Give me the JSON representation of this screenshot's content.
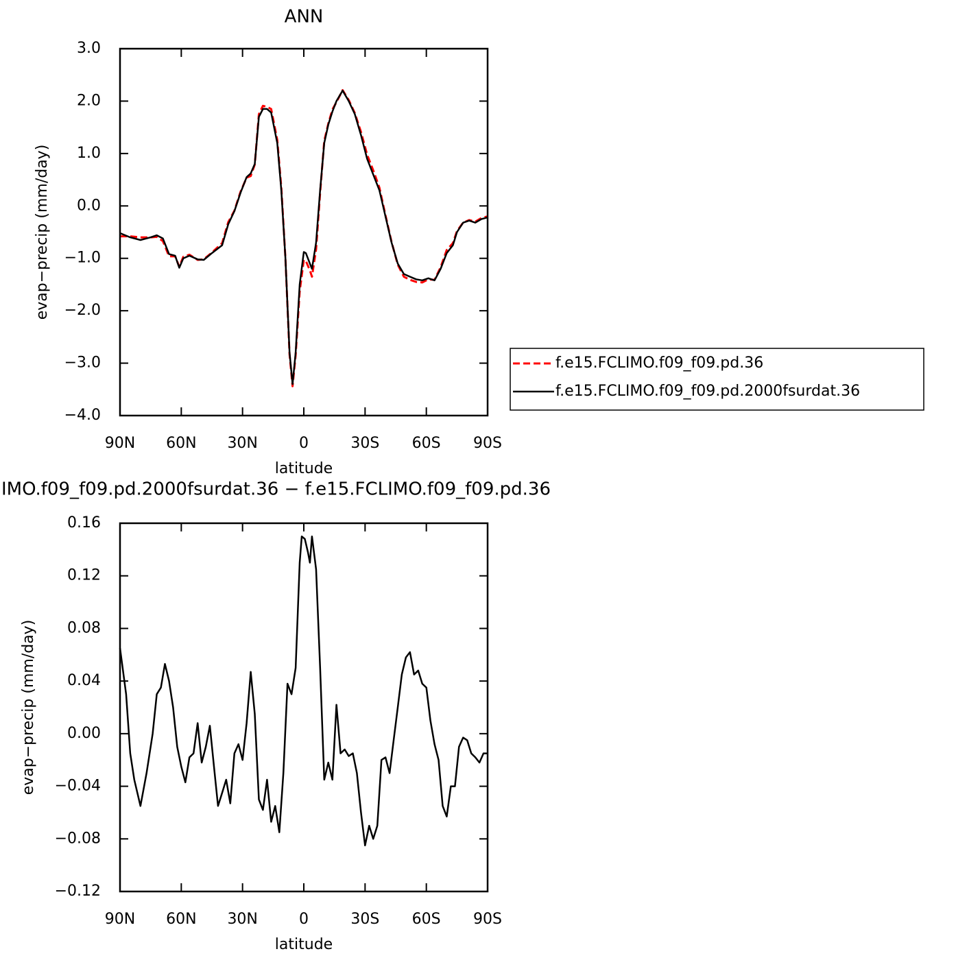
{
  "chart_data": [
    {
      "type": "line",
      "title": "ANN",
      "xlabel": "latitude",
      "ylabel": "evap−precip (mm/day)",
      "x": [
        90,
        85,
        80,
        75,
        72,
        69,
        66,
        63,
        61,
        59,
        56,
        52,
        49,
        45,
        40,
        37,
        34,
        31,
        28,
        26,
        24,
        22,
        20,
        18,
        16,
        13,
        11,
        9,
        7,
        5.5,
        4,
        2,
        0,
        -1,
        -3,
        -4,
        -6,
        -8,
        -10,
        -12,
        -14,
        -16,
        -19,
        -22,
        -25,
        -28,
        -31,
        -34,
        -37,
        -40,
        -43,
        -46,
        -49,
        -52,
        -55,
        -58,
        -61,
        -64,
        -67,
        -70,
        -73,
        -75,
        -78,
        -81,
        -84,
        -87,
        -90
      ],
      "series": [
        {
          "name": "f.e15.FCLIMO.f09_f09.pd.36",
          "color": "#ff0000",
          "dash": "dashed",
          "values": [
            -0.58,
            -0.58,
            -0.6,
            -0.6,
            -0.59,
            -0.67,
            -0.96,
            -0.96,
            -1.16,
            -0.97,
            -0.93,
            -1.03,
            -1.02,
            -0.89,
            -0.71,
            -0.31,
            -0.09,
            0.27,
            0.54,
            0.57,
            0.79,
            1.75,
            1.91,
            1.89,
            1.85,
            1.26,
            0.35,
            -1.0,
            -2.83,
            -3.44,
            -2.85,
            -1.63,
            -1.03,
            -1.05,
            -1.23,
            -1.35,
            -0.83,
            0.25,
            1.24,
            1.57,
            1.84,
            1.98,
            2.21,
            2.02,
            1.77,
            1.41,
            0.98,
            0.68,
            0.35,
            -0.18,
            -0.69,
            -1.12,
            -1.35,
            -1.41,
            -1.45,
            -1.46,
            -1.4,
            -1.41,
            -1.17,
            -0.84,
            -0.71,
            -0.48,
            -0.32,
            -0.27,
            -0.3,
            -0.23,
            -0.2
          ]
        },
        {
          "name": "f.e15.FCLIMO.f09_f09.pd.2000fsurdat.36",
          "color": "#000000",
          "dash": "solid",
          "values": [
            -0.52,
            -0.6,
            -0.65,
            -0.6,
            -0.56,
            -0.62,
            -0.92,
            -0.95,
            -1.18,
            -1.0,
            -0.95,
            -1.02,
            -1.03,
            -0.9,
            -0.75,
            -0.35,
            -0.1,
            0.25,
            0.55,
            0.62,
            0.8,
            1.7,
            1.85,
            1.85,
            1.78,
            1.2,
            0.3,
            -1.0,
            -2.8,
            -3.4,
            -2.8,
            -1.5,
            -0.88,
            -0.9,
            -1.1,
            -1.2,
            -0.7,
            0.3,
            1.2,
            1.55,
            1.8,
            2.0,
            2.2,
            2.0,
            1.75,
            1.35,
            0.9,
            0.6,
            0.3,
            -0.2,
            -0.7,
            -1.1,
            -1.3,
            -1.35,
            -1.4,
            -1.42,
            -1.38,
            -1.42,
            -1.2,
            -0.9,
            -0.75,
            -0.5,
            -0.32,
            -0.28,
            -0.32,
            -0.25,
            -0.22
          ]
        }
      ],
      "xlim": [
        90,
        -90
      ],
      "xticks": [
        {
          "value": 90,
          "label": "90N"
        },
        {
          "value": 60,
          "label": "60N"
        },
        {
          "value": 30,
          "label": "30N"
        },
        0,
        {
          "value": -30,
          "label": "30S"
        },
        {
          "value": -60,
          "label": "60S"
        },
        {
          "value": -90,
          "label": "90S"
        }
      ],
      "ylim": [
        -4,
        3
      ],
      "yticks": [
        {
          "value": -4,
          "label": "−4.0"
        },
        {
          "value": -3,
          "label": "−3.0"
        },
        {
          "value": -2,
          "label": "−2.0"
        },
        {
          "value": -1,
          "label": "−1.0"
        },
        {
          "value": 0,
          "label": "0.0"
        },
        {
          "value": 1,
          "label": "1.0"
        },
        {
          "value": 2,
          "label": "2.0"
        },
        {
          "value": 3,
          "label": "3.0"
        }
      ],
      "legend": "right"
    },
    {
      "type": "line",
      "title": "IMO.f09_f09.pd.2000fsurdat.36 − f.e15.FCLIMO.f09_f09.pd.36",
      "xlabel": "latitude",
      "ylabel": "evap−precip (mm/day)",
      "x": [
        90,
        87,
        85,
        83,
        80,
        77,
        74,
        72,
        70,
        68,
        66,
        64,
        62,
        60,
        58,
        56,
        54,
        52,
        50,
        48,
        46,
        44,
        42,
        40,
        38,
        36,
        34,
        32,
        30,
        28,
        26,
        24,
        22,
        20,
        18,
        16,
        14,
        12,
        10,
        8,
        6,
        4,
        2,
        1,
        -0.5,
        -2,
        -3,
        -4,
        -6,
        -8,
        -10,
        -12,
        -14,
        -16,
        -18,
        -20,
        -22,
        -24,
        -26,
        -28,
        -30,
        -32,
        -34,
        -36,
        -38,
        -40,
        -42,
        -44,
        -46,
        -48,
        -50,
        -52,
        -54,
        -56,
        -58,
        -60,
        -62,
        -64,
        -66,
        -68,
        -70,
        -72,
        -74,
        -76,
        -78,
        -80,
        -82,
        -84,
        -86,
        -88,
        -90
      ],
      "series": [
        {
          "name": null,
          "color": "#000000",
          "dash": "solid",
          "values": [
            0.065,
            0.03,
            -0.015,
            -0.035,
            -0.055,
            -0.03,
            0.0,
            0.03,
            0.035,
            0.053,
            0.04,
            0.02,
            -0.01,
            -0.025,
            -0.037,
            -0.018,
            -0.015,
            0.008,
            -0.022,
            -0.01,
            0.006,
            -0.025,
            -0.055,
            -0.045,
            -0.035,
            -0.053,
            -0.015,
            -0.008,
            -0.02,
            0.008,
            0.047,
            0.015,
            -0.05,
            -0.058,
            -0.035,
            -0.067,
            -0.055,
            -0.075,
            -0.03,
            0.038,
            0.03,
            0.05,
            0.13,
            0.15,
            0.148,
            0.138,
            0.13,
            0.15,
            0.125,
            0.05,
            -0.035,
            -0.022,
            -0.035,
            0.022,
            -0.015,
            -0.012,
            -0.017,
            -0.015,
            -0.03,
            -0.06,
            -0.085,
            -0.07,
            -0.08,
            -0.07,
            -0.02,
            -0.018,
            -0.03,
            -0.005,
            0.02,
            0.045,
            0.058,
            0.062,
            0.045,
            0.048,
            0.038,
            0.035,
            0.01,
            -0.008,
            -0.02,
            -0.055,
            -0.063,
            -0.04,
            -0.04,
            -0.01,
            -0.003,
            -0.005,
            -0.015,
            -0.018,
            -0.022,
            -0.015,
            -0.015
          ]
        }
      ],
      "xlim": [
        90,
        -90
      ],
      "xticks": [
        {
          "value": 90,
          "label": "90N"
        },
        {
          "value": 60,
          "label": "60N"
        },
        {
          "value": 30,
          "label": "30N"
        },
        0,
        {
          "value": -30,
          "label": "30S"
        },
        {
          "value": -60,
          "label": "60S"
        },
        {
          "value": -90,
          "label": "90S"
        }
      ],
      "ylim": [
        -0.12,
        0.16
      ],
      "yticks": [
        {
          "value": -0.12,
          "label": "−0.12"
        },
        {
          "value": -0.08,
          "label": "−0.08"
        },
        {
          "value": -0.04,
          "label": "−0.04"
        },
        {
          "value": 0,
          "label": "0.00"
        },
        0.04,
        0.08,
        0.12,
        0.16
      ]
    }
  ]
}
